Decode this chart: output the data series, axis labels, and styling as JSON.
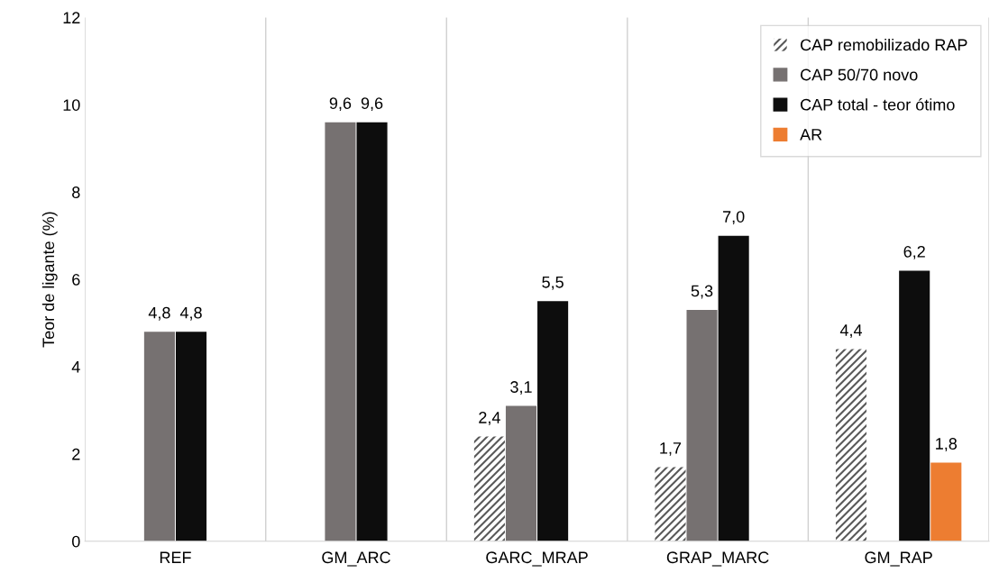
{
  "chart_data": {
    "type": "bar",
    "ylabel": "Teor de ligante (%)",
    "categories": [
      "REF",
      "GM_ARC",
      "GARC_MRAP",
      "GRAP_MARC",
      "GM_RAP"
    ],
    "series": [
      {
        "name": "CAP remobilizado RAP",
        "color": "#595959",
        "values": [
          null,
          null,
          2.4,
          1.7,
          4.4
        ],
        "value_labels": [
          null,
          null,
          "2,4",
          "1,7",
          "4,4"
        ]
      },
      {
        "name": "CAP 50/70 novo",
        "color": "#767171",
        "values": [
          4.8,
          9.6,
          3.1,
          5.3,
          null
        ],
        "value_labels": [
          "4,8",
          "9,6",
          "3,1",
          "5,3",
          null
        ]
      },
      {
        "name": "CAP total - teor ótimo",
        "color": "#0d0d0d",
        "values": [
          4.8,
          9.6,
          5.5,
          7.0,
          6.2
        ],
        "value_labels": [
          "4,8",
          "9,6",
          "5,5",
          "7,0",
          "6,2"
        ]
      },
      {
        "name": "AR",
        "color": "#ed7d31",
        "values": [
          null,
          null,
          null,
          null,
          1.8
        ],
        "value_labels": [
          null,
          null,
          null,
          null,
          "1,8"
        ]
      }
    ],
    "ylim": [
      0,
      12
    ],
    "yticks": [
      0,
      2,
      4,
      6,
      8,
      10,
      12
    ],
    "grid": "x",
    "legend": "top right"
  }
}
